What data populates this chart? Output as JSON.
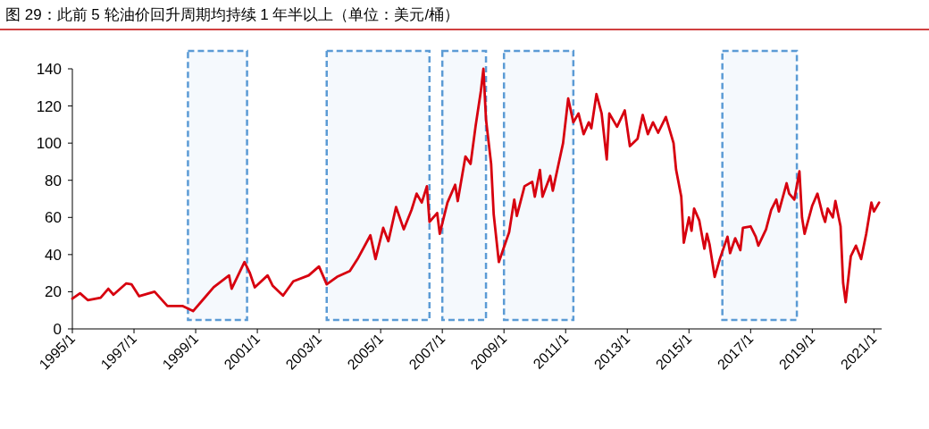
{
  "chart_data": {
    "type": "line",
    "title": "图 29：此前 5 轮油价回升周期均持续 1 年半以上（单位：美元/桶）",
    "xlim": [
      "1995-01",
      "2021-04"
    ],
    "xticks": [
      {
        "value": "1995-01",
        "label": "1995/1"
      },
      {
        "value": "1997-01",
        "label": "1997/1"
      },
      {
        "value": "1999-01",
        "label": "1999/1"
      },
      {
        "value": "2001-01",
        "label": "2001/1"
      },
      {
        "value": "2003-01",
        "label": "2003/1"
      },
      {
        "value": "2005-01",
        "label": "2005/1"
      },
      {
        "value": "2007-01",
        "label": "2007/1"
      },
      {
        "value": "2009-01",
        "label": "2009/1"
      },
      {
        "value": "2011-01",
        "label": "2011/1"
      },
      {
        "value": "2013-01",
        "label": "2013/1"
      },
      {
        "value": "2015-01",
        "label": "2015/1"
      },
      {
        "value": "2017-01",
        "label": "2017/1"
      },
      {
        "value": "2019-01",
        "label": "2019/1"
      },
      {
        "value": "2021-01",
        "label": "2021/1"
      }
    ],
    "ylim": [
      0,
      140
    ],
    "yticks": [
      0,
      20,
      40,
      60,
      80,
      100,
      120,
      140
    ],
    "grid": false,
    "marker": "none",
    "line_style": "solid",
    "series": [
      {
        "color": "#d7000f",
        "x": [
          "1995-01",
          "1995-04",
          "1995-07",
          "1995-12",
          "1996-03",
          "1996-05",
          "1996-10",
          "1996-12",
          "1997-03",
          "1997-09",
          "1998-02",
          "1998-08",
          "1998-12",
          "1999-04",
          "1999-08",
          "2000-02",
          "2000-03",
          "2000-08",
          "2000-10",
          "2000-12",
          "2001-05",
          "2001-07",
          "2001-11",
          "2002-03",
          "2002-09",
          "2003-01",
          "2003-04",
          "2003-08",
          "2004-01",
          "2004-04",
          "2004-09",
          "2004-11",
          "2005-02",
          "2005-04",
          "2005-07",
          "2005-10",
          "2006-01",
          "2006-03",
          "2006-05",
          "2006-07",
          "2006-08",
          "2006-11",
          "2006-12",
          "2007-03",
          "2007-06",
          "2007-07",
          "2007-10",
          "2007-12",
          "2008-02",
          "2008-04",
          "2008-05",
          "2008-06",
          "2008-08",
          "2008-09",
          "2008-11",
          "2009-01",
          "2009-03",
          "2009-05",
          "2009-06",
          "2009-09",
          "2009-12",
          "2010-01",
          "2010-03",
          "2010-04",
          "2010-07",
          "2010-08",
          "2010-10",
          "2010-12",
          "2011-02",
          "2011-04",
          "2011-06",
          "2011-08",
          "2011-10",
          "2011-11",
          "2012-01",
          "2012-03",
          "2012-05",
          "2012-06",
          "2012-09",
          "2012-12",
          "2013-02",
          "2013-05",
          "2013-07",
          "2013-09",
          "2013-11",
          "2014-01",
          "2014-04",
          "2014-07",
          "2014-08",
          "2014-10",
          "2014-11",
          "2015-01",
          "2015-02",
          "2015-03",
          "2015-05",
          "2015-07",
          "2015-08",
          "2015-09",
          "2015-11",
          "2016-01",
          "2016-04",
          "2016-05",
          "2016-07",
          "2016-09",
          "2016-10",
          "2017-01",
          "2017-03",
          "2017-04",
          "2017-07",
          "2017-09",
          "2017-11",
          "2017-12",
          "2018-03",
          "2018-04",
          "2018-06",
          "2018-08",
          "2018-09",
          "2018-10",
          "2019-01",
          "2019-03",
          "2019-05",
          "2019-06",
          "2019-07",
          "2019-09",
          "2019-10",
          "2019-12",
          "2020-01",
          "2020-02",
          "2020-04",
          "2020-06",
          "2020-08",
          "2020-10",
          "2020-12",
          "2021-01",
          "2021-03"
        ],
        "values": [
          16.3,
          19.2,
          15.5,
          16.8,
          21.6,
          18.4,
          24.5,
          24.0,
          17.6,
          20.0,
          12.3,
          12.3,
          9.6,
          16.0,
          22.4,
          28.8,
          21.6,
          36.0,
          30.4,
          22.4,
          28.8,
          23.2,
          17.9,
          25.6,
          28.8,
          33.6,
          24.0,
          28.0,
          31.2,
          37.6,
          50.4,
          37.6,
          54.4,
          47.2,
          65.6,
          53.6,
          64.0,
          72.8,
          68.0,
          76.8,
          57.6,
          62.4,
          51.2,
          68.0,
          77.6,
          68.8,
          92.8,
          88.8,
          109.6,
          128.0,
          140.0,
          112.8,
          88.8,
          61.6,
          36.0,
          44.0,
          52.0,
          69.6,
          60.8,
          76.8,
          79.2,
          71.2,
          85.6,
          71.2,
          82.4,
          74.4,
          87.2,
          100.0,
          124.0,
          111.2,
          116.0,
          104.8,
          111.2,
          108.0,
          126.4,
          116.0,
          91.2,
          116.0,
          108.8,
          117.6,
          98.4,
          102.4,
          115.2,
          104.8,
          111.2,
          105.6,
          114.1,
          100.0,
          85.6,
          71.2,
          46.4,
          60.0,
          52.8,
          64.8,
          58.4,
          43.2,
          51.2,
          45.6,
          28.0,
          37.6,
          49.6,
          40.8,
          48.8,
          42.4,
          54.4,
          55.2,
          49.6,
          44.8,
          53.6,
          64.0,
          69.6,
          63.2,
          78.4,
          72.8,
          69.6,
          84.8,
          60.0,
          51.2,
          66.4,
          72.8,
          61.6,
          57.6,
          64.8,
          60.0,
          68.8,
          55.2,
          24.8,
          14.4,
          39.2,
          44.8,
          37.6,
          51.2,
          68.0,
          63.2,
          68.0
        ]
      }
    ],
    "bands": [
      {
        "axis": "x",
        "from": "1998-10",
        "to": "2000-09",
        "color": "#5b9bd5"
      },
      {
        "axis": "x",
        "from": "2003-04",
        "to": "2006-08",
        "color": "#5b9bd5"
      },
      {
        "axis": "x",
        "from": "2007-01",
        "to": "2008-06",
        "color": "#5b9bd5"
      },
      {
        "axis": "x",
        "from": "2009-01",
        "to": "2011-04",
        "color": "#5b9bd5"
      },
      {
        "axis": "x",
        "from": "2016-02",
        "to": "2018-07",
        "color": "#5b9bd5"
      }
    ]
  }
}
